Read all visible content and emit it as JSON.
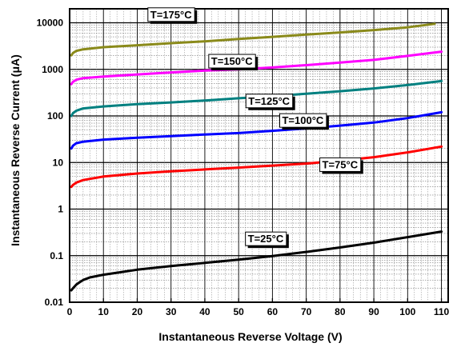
{
  "chart_data": {
    "type": "line",
    "title": "",
    "xlabel": "Instantaneous Reverse Voltage (V)",
    "ylabel": "Instantaneous Reverse Current (μA)",
    "xlim": [
      0,
      112
    ],
    "ylim": [
      0.01,
      20000
    ],
    "yscale": "log",
    "grid": true,
    "x_ticks": [
      0,
      10,
      20,
      30,
      40,
      50,
      60,
      70,
      80,
      90,
      100,
      110
    ],
    "x_tick_labels": [
      "0",
      "10",
      "20",
      "30",
      "40",
      "50",
      "60",
      "70",
      "80",
      "90",
      "100",
      "110"
    ],
    "y_ticks": [
      0.01,
      0.1,
      1,
      10,
      100,
      1000,
      10000
    ],
    "y_tick_labels": [
      "0.01",
      "0.1",
      "1",
      "10",
      "100",
      "1000",
      "10000"
    ],
    "series": [
      {
        "name": "T=175°C",
        "color": "#8a8a1a",
        "label_pos": [
          30,
          15000
        ],
        "points": [
          [
            0.5,
            2000
          ],
          [
            1,
            2250
          ],
          [
            2,
            2500
          ],
          [
            4,
            2700
          ],
          [
            10,
            3000
          ],
          [
            20,
            3300
          ],
          [
            30,
            3650
          ],
          [
            40,
            4000
          ],
          [
            50,
            4500
          ],
          [
            60,
            5000
          ],
          [
            70,
            5600
          ],
          [
            80,
            6200
          ],
          [
            90,
            7000
          ],
          [
            100,
            8000
          ],
          [
            108,
            9500
          ]
        ]
      },
      {
        "name": "T=150°C",
        "color": "#ff00ff",
        "label_pos": [
          48,
          1500
        ],
        "points": [
          [
            0.5,
            480
          ],
          [
            1,
            540
          ],
          [
            2,
            600
          ],
          [
            4,
            650
          ],
          [
            10,
            700
          ],
          [
            20,
            780
          ],
          [
            30,
            860
          ],
          [
            40,
            940
          ],
          [
            50,
            1000
          ],
          [
            60,
            1100
          ],
          [
            70,
            1230
          ],
          [
            80,
            1400
          ],
          [
            90,
            1600
          ],
          [
            100,
            1950
          ],
          [
            110,
            2400
          ]
        ]
      },
      {
        "name": "T=125°C",
        "color": "#008080",
        "label_pos": [
          59,
          210
        ],
        "points": [
          [
            0.5,
            100
          ],
          [
            1,
            115
          ],
          [
            2,
            130
          ],
          [
            4,
            145
          ],
          [
            10,
            160
          ],
          [
            20,
            180
          ],
          [
            30,
            195
          ],
          [
            40,
            215
          ],
          [
            50,
            240
          ],
          [
            60,
            265
          ],
          [
            70,
            300
          ],
          [
            80,
            340
          ],
          [
            90,
            390
          ],
          [
            100,
            460
          ],
          [
            110,
            560
          ]
        ]
      },
      {
        "name": "T=100°C",
        "color": "#0000ff",
        "label_pos": [
          69,
          80
        ],
        "points": [
          [
            0.5,
            20
          ],
          [
            1,
            23
          ],
          [
            2,
            26
          ],
          [
            4,
            28
          ],
          [
            10,
            31
          ],
          [
            20,
            34
          ],
          [
            30,
            37
          ],
          [
            40,
            40
          ],
          [
            50,
            43
          ],
          [
            60,
            48
          ],
          [
            70,
            54
          ],
          [
            80,
            62
          ],
          [
            90,
            72
          ],
          [
            100,
            90
          ],
          [
            110,
            120
          ]
        ]
      },
      {
        "name": "T=75°C",
        "color": "#ff0000",
        "label_pos": [
          80,
          9
        ],
        "points": [
          [
            0.5,
            3
          ],
          [
            1,
            3.3
          ],
          [
            2,
            3.7
          ],
          [
            4,
            4.2
          ],
          [
            10,
            5
          ],
          [
            20,
            5.8
          ],
          [
            30,
            6.5
          ],
          [
            40,
            7.1
          ],
          [
            50,
            7.8
          ],
          [
            60,
            8.6
          ],
          [
            70,
            9.5
          ],
          [
            80,
            11
          ],
          [
            90,
            13
          ],
          [
            100,
            16.5
          ],
          [
            110,
            22
          ]
        ]
      },
      {
        "name": "T=25°C",
        "color": "#000000",
        "label_pos": [
          58,
          0.23
        ],
        "points": [
          [
            0.5,
            0.018
          ],
          [
            1,
            0.02
          ],
          [
            2,
            0.024
          ],
          [
            3,
            0.027
          ],
          [
            4,
            0.03
          ],
          [
            6,
            0.034
          ],
          [
            10,
            0.039
          ],
          [
            15,
            0.044
          ],
          [
            20,
            0.05
          ],
          [
            30,
            0.06
          ],
          [
            40,
            0.07
          ],
          [
            50,
            0.082
          ],
          [
            60,
            0.098
          ],
          [
            70,
            0.12
          ],
          [
            80,
            0.15
          ],
          [
            90,
            0.19
          ],
          [
            100,
            0.25
          ],
          [
            110,
            0.33
          ]
        ]
      }
    ]
  }
}
